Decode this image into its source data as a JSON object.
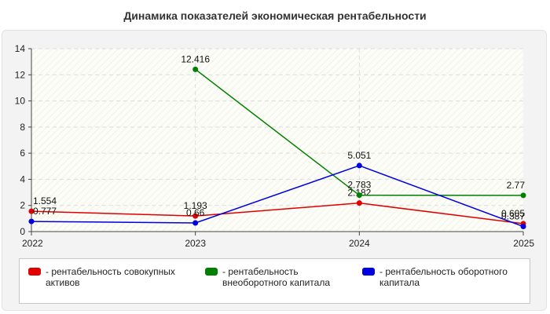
{
  "chart_data": {
    "type": "line",
    "title": "Динамика показателей экономическая рентабельности",
    "x": [
      "2022",
      "2023",
      "2024",
      "2025"
    ],
    "ylim": [
      0,
      14
    ],
    "yticks": [
      "0",
      "2",
      "4",
      "6",
      "8",
      "10",
      "12",
      "14"
    ],
    "grid": true,
    "legend_position": "bottom",
    "series": [
      {
        "name": "- рентабельность совокупных активов",
        "color": "#e00000",
        "values": [
          1.554,
          1.193,
          2.182,
          0.605
        ],
        "labels": [
          "1.554",
          "1.193",
          "2.182",
          "0.605"
        ]
      },
      {
        "name": "- рентабельность внеоборотного капитала",
        "color": "#008000",
        "values": [
          null,
          12.416,
          2.783,
          2.77
        ],
        "labels": [
          null,
          "12.416",
          "2.783",
          "2.77"
        ]
      },
      {
        "name": "- рентабельность оборотного капитала",
        "color": "#0000e0",
        "values": [
          0.777,
          0.66,
          5.051,
          0.387
        ],
        "labels": [
          "0.777",
          "0.66",
          "5.051",
          "0.387"
        ]
      }
    ]
  }
}
